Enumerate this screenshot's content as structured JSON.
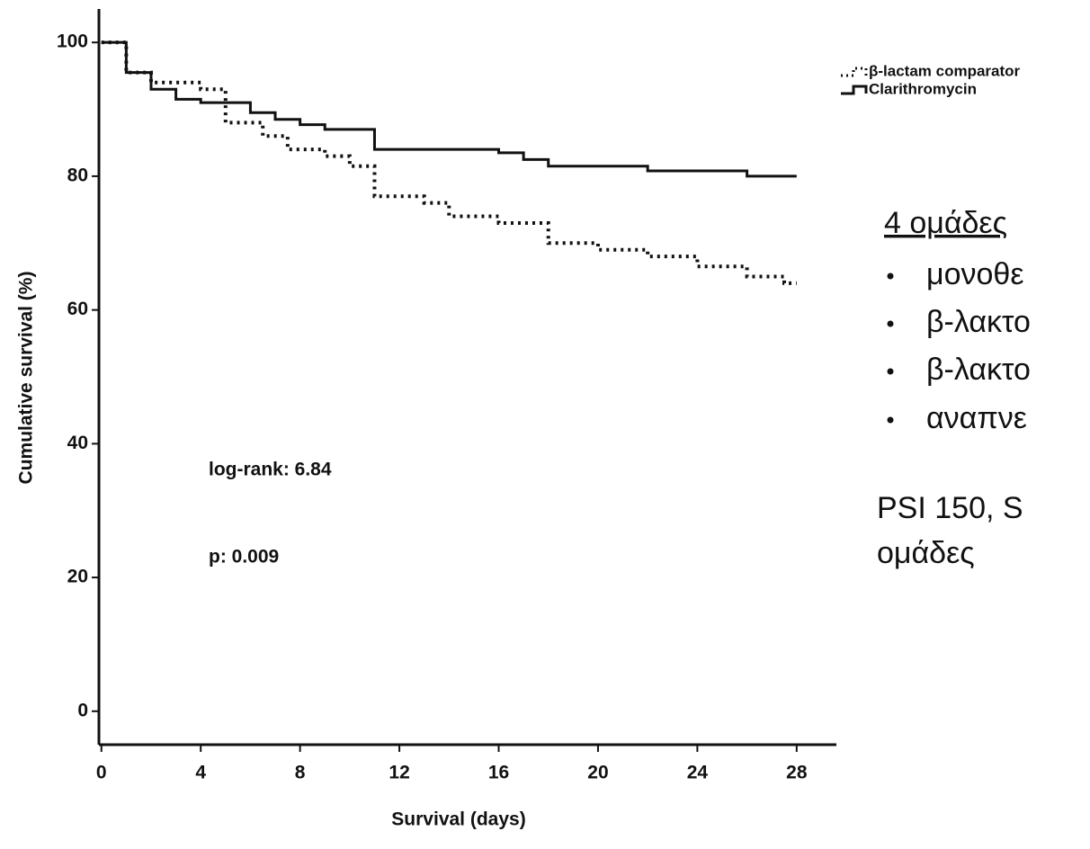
{
  "chart_data": {
    "type": "line",
    "y_label": "Cumulative survival (%)",
    "x_label": "Survival (days)",
    "xlim": [
      -0.1,
      29.6
    ],
    "ylim": [
      -5,
      105
    ],
    "xticks": [
      0,
      4,
      8,
      12,
      16,
      20,
      24,
      28
    ],
    "yticks": [
      0,
      20,
      40,
      60,
      80,
      100
    ],
    "grid": false,
    "legend": "upper right",
    "annotations": [
      "log-rank: 6.84",
      "p: 0.009"
    ],
    "series": [
      {
        "name": "β-lactam comparator",
        "color": "#111111",
        "dash": "dotted",
        "x": [
          0,
          1,
          1,
          2,
          2,
          4,
          4,
          5,
          5,
          6.5,
          6.5,
          7.5,
          7.5,
          9,
          9,
          10,
          10,
          11,
          11,
          13,
          13,
          14,
          14,
          16,
          16,
          18,
          18,
          20,
          20,
          22,
          22,
          24,
          24,
          26,
          26,
          27.5,
          27.5,
          28
        ],
        "values": [
          100,
          100,
          95.5,
          95.5,
          94,
          94,
          93,
          93,
          88,
          88,
          86,
          86,
          84,
          84,
          83,
          83,
          81.5,
          81.5,
          77,
          77,
          76,
          76,
          74,
          74,
          73,
          73,
          70,
          70,
          69,
          69,
          68,
          68,
          66.5,
          66.5,
          65,
          65,
          64,
          64
        ]
      },
      {
        "name": "Clarithromycin",
        "color": "#111111",
        "dash": "solid",
        "x": [
          0,
          1,
          1,
          2,
          2,
          3,
          3,
          4,
          4,
          6,
          6,
          7,
          7,
          8,
          8,
          9,
          9,
          11,
          11,
          16,
          16,
          17,
          17,
          18,
          18,
          22,
          22,
          26,
          26,
          28
        ],
        "values": [
          100,
          100,
          95.5,
          95.5,
          93,
          93,
          91.5,
          91.5,
          91,
          91,
          89.5,
          89.5,
          88.5,
          88.5,
          87.7,
          87.7,
          87,
          87,
          84,
          84,
          83.5,
          83.5,
          82.5,
          82.5,
          81.5,
          81.5,
          80.8,
          80.8,
          80,
          80
        ]
      }
    ]
  },
  "side_text": {
    "heading": "4 ομάδες",
    "bullets": [
      "μονοθε",
      "β-λακτο",
      "β-λακτο",
      "αναπνε"
    ],
    "lines": [
      "PSI 150, S",
      "ομάδες"
    ]
  }
}
